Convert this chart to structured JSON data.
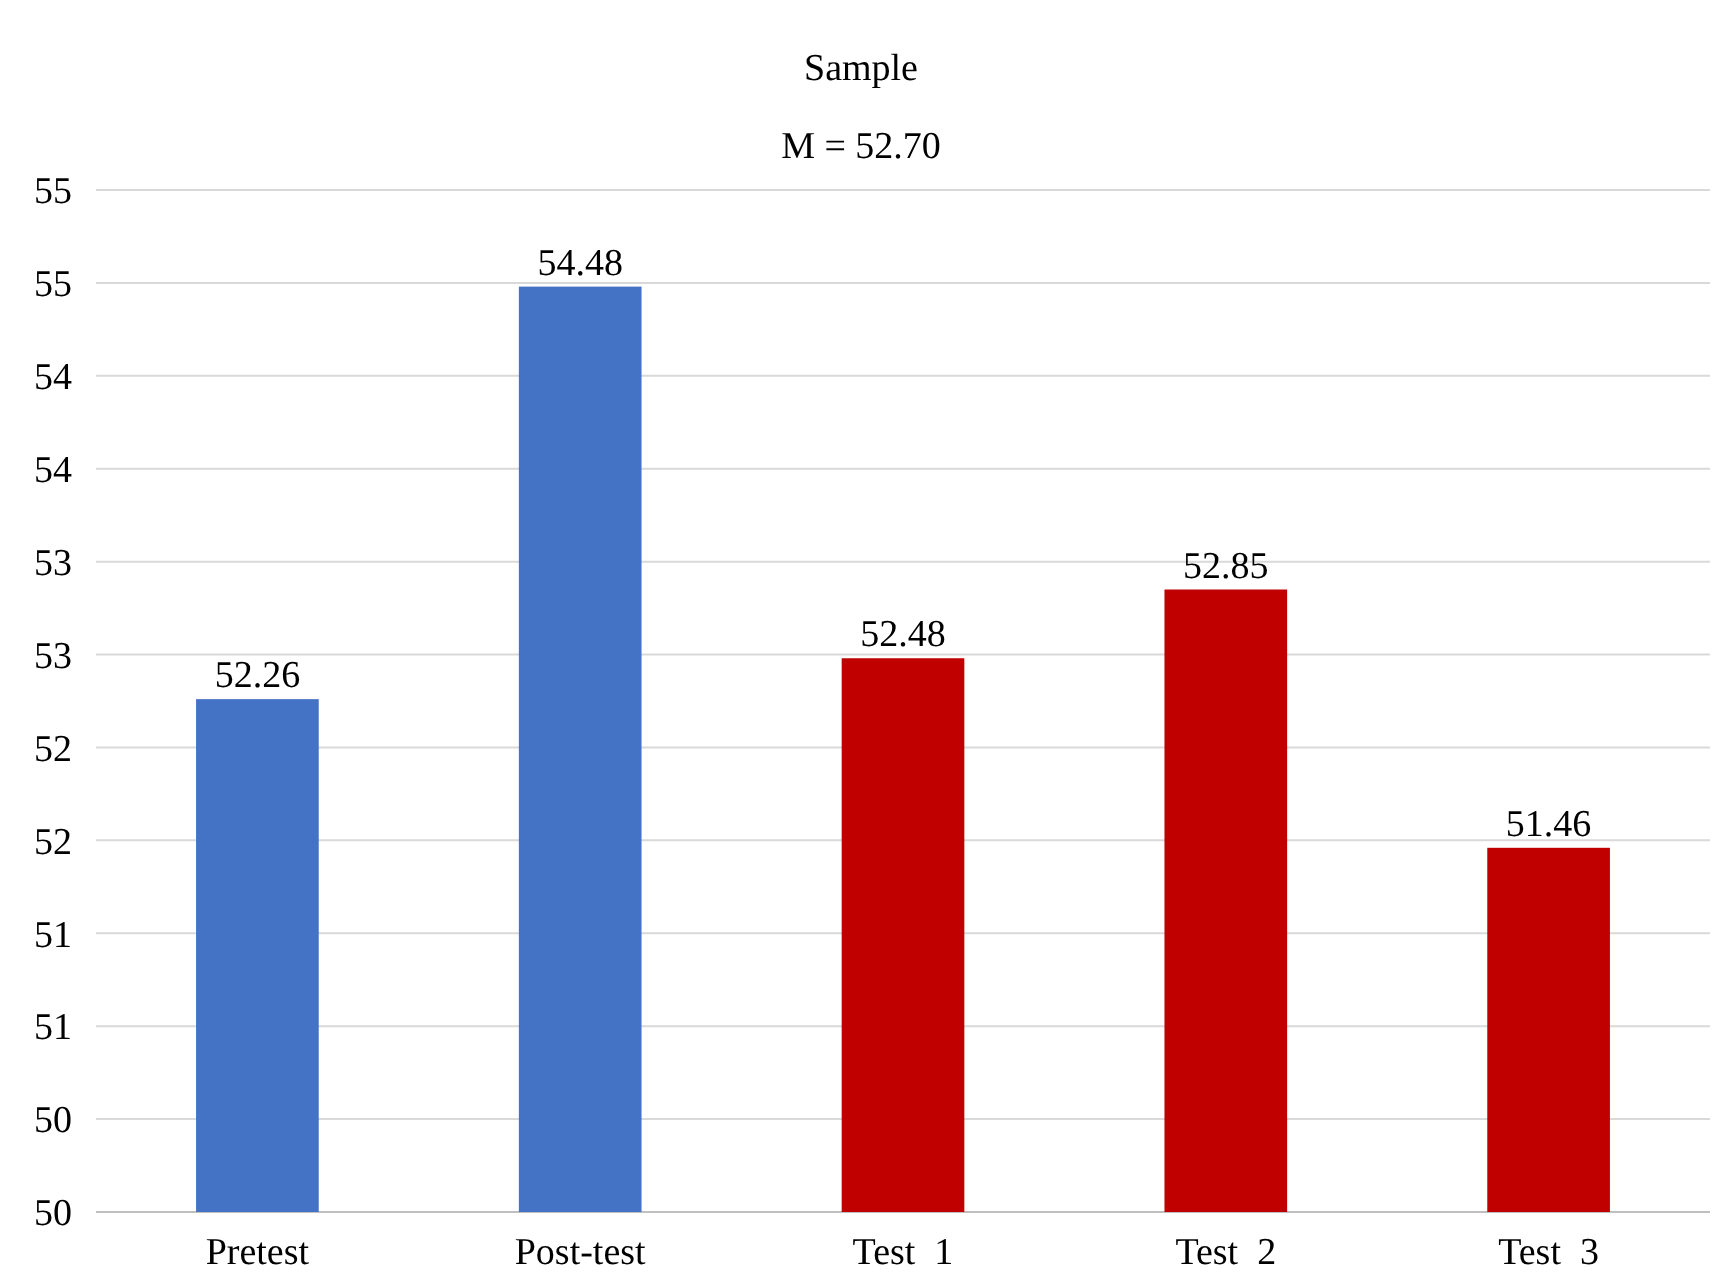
{
  "chart_data": {
    "type": "bar",
    "title": "Sample",
    "subtitle": "M = 52.70",
    "categories": [
      "Pretest",
      "Post-test",
      "Test  1",
      "Test  2",
      "Test  3"
    ],
    "values": [
      52.26,
      54.48,
      52.48,
      52.85,
      51.46
    ],
    "colors": [
      "#4472c4",
      "#4472c4",
      "#c00000",
      "#c00000",
      "#c00000"
    ],
    "ylim": [
      49.5,
      55
    ],
    "yticks": [
      {
        "value": 49.5,
        "label": "50"
      },
      {
        "value": 50,
        "label": "50"
      },
      {
        "value": 50.5,
        "label": "51"
      },
      {
        "value": 51,
        "label": "51"
      },
      {
        "value": 51.5,
        "label": "52"
      },
      {
        "value": 52,
        "label": "52"
      },
      {
        "value": 52.5,
        "label": "53"
      },
      {
        "value": 53,
        "label": "53"
      },
      {
        "value": 53.5,
        "label": "54"
      },
      {
        "value": 54,
        "label": "54"
      },
      {
        "value": 54.5,
        "label": "55"
      },
      {
        "value": 55,
        "label": "55"
      }
    ],
    "grid": true,
    "data_labels": true
  }
}
